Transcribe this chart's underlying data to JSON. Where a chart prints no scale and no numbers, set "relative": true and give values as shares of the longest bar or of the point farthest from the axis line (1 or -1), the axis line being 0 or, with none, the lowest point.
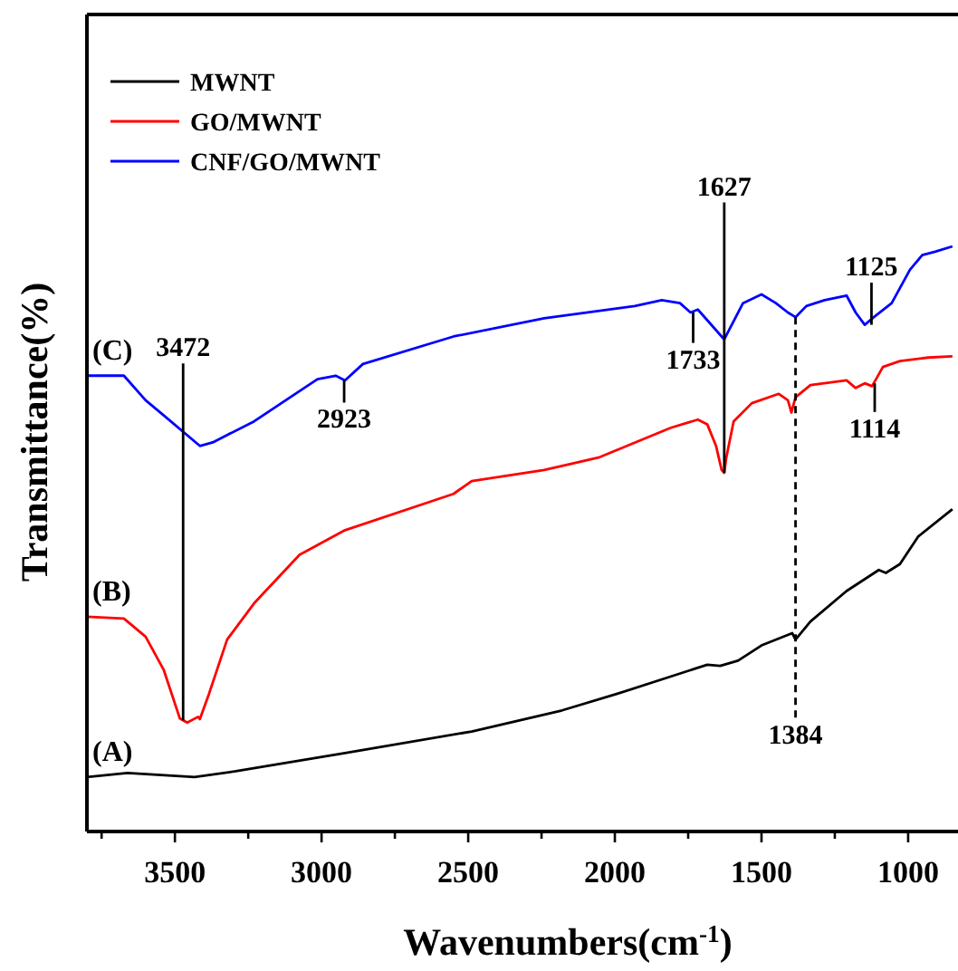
{
  "chart_data": {
    "type": "line",
    "relative": true,
    "xlabel": "Wavenumbers(cm$^{-1}$)",
    "ylabel": "Transmittance(%)",
    "xlim": [
      3800,
      830
    ],
    "xticks": [
      {
        "value": 3750,
        "label": null
      },
      3500,
      {
        "value": 3250,
        "label": null
      },
      3000,
      {
        "value": 2750,
        "label": null
      },
      2500,
      {
        "value": 2250,
        "label": null
      },
      2000,
      {
        "value": 1750,
        "label": null
      },
      1500,
      {
        "value": 1250,
        "label": null
      },
      1000
    ],
    "tick_labels": "x",
    "legend": "top left",
    "grid": false,
    "marker": "none",
    "line_style": "solid",
    "series": [
      {
        "name": "MWNT",
        "color": "#000000",
        "x": [
          3800,
          3662,
          3433,
          3292,
          2920,
          2488,
          2180,
          1994,
          1685,
          1641,
          1580,
          1500,
          1395,
          1384,
          1333,
          1210,
          1100,
          1076,
          1028,
          966,
          849
        ],
        "values": [
          0.093,
          0.1,
          0.093,
          0.103,
          0.134,
          0.171,
          0.207,
          0.235,
          0.285,
          0.283,
          0.292,
          0.318,
          0.339,
          0.328,
          0.359,
          0.411,
          0.447,
          0.442,
          0.457,
          0.504,
          0.551
        ]
      },
      {
        "name": "GO/MWNT",
        "color": "#ff0000",
        "x": [
          3800,
          3674,
          3600,
          3538,
          3483,
          3458,
          3421,
          3415,
          3384,
          3322,
          3230,
          3075,
          2920,
          2550,
          2488,
          2241,
          2056,
          1809,
          1717,
          1685,
          1655,
          1636,
          1627,
          1620,
          1595,
          1533,
          1441,
          1410,
          1398,
          1384,
          1333,
          1210,
          1179,
          1148,
          1123,
          1086,
          1028,
          932,
          849
        ],
        "values": [
          0.367,
          0.364,
          0.333,
          0.276,
          0.193,
          0.186,
          0.196,
          0.192,
          0.235,
          0.328,
          0.39,
          0.473,
          0.515,
          0.577,
          0.599,
          0.618,
          0.639,
          0.69,
          0.704,
          0.696,
          0.659,
          0.618,
          0.613,
          0.639,
          0.701,
          0.732,
          0.748,
          0.737,
          0.716,
          0.742,
          0.763,
          0.771,
          0.758,
          0.766,
          0.761,
          0.794,
          0.804,
          0.81,
          0.812
        ]
      },
      {
        "name": "CNF/GO/MWNT",
        "color": "#0000ff",
        "x": [
          3800,
          3674,
          3600,
          3538,
          3415,
          3371,
          3230,
          3014,
          2952,
          2920,
          2859,
          2550,
          2241,
          1932,
          1840,
          1778,
          1742,
          1717,
          1627,
          1563,
          1500,
          1451,
          1410,
          1384,
          1347,
          1285,
          1210,
          1179,
          1148,
          1117,
          1056,
          994,
          952,
          908,
          849
        ],
        "values": [
          0.779,
          0.779,
          0.737,
          0.711,
          0.659,
          0.665,
          0.701,
          0.773,
          0.779,
          0.771,
          0.799,
          0.846,
          0.877,
          0.898,
          0.908,
          0.903,
          0.887,
          0.892,
          0.841,
          0.903,
          0.918,
          0.903,
          0.887,
          0.879,
          0.898,
          0.908,
          0.916,
          0.887,
          0.866,
          0.879,
          0.903,
          0.96,
          0.985,
          0.991,
          1.0
        ]
      }
    ],
    "annotations": [
      {
        "text": "3472",
        "x": 3472,
        "y": 0.19
      },
      {
        "text": "2923",
        "x": 2923,
        "y": 0.771
      },
      {
        "text": "1733",
        "x": 1733,
        "y": 0.887
      },
      {
        "text": "1627",
        "x": 1627,
        "y": 0.613
      },
      {
        "text": "1125",
        "x": 1125,
        "y": 0.866
      },
      {
        "text": "1114",
        "x": 1114,
        "y": 0.766
      },
      {
        "text": "1384",
        "x": 1384,
        "y": 0.879
      },
      {
        "text": "(A)",
        "x": 3800,
        "y": 0.093
      },
      {
        "text": "(B)",
        "x": 3800,
        "y": 0.367
      },
      {
        "text": "(C)",
        "x": 3800,
        "y": 0.779
      }
    ]
  }
}
